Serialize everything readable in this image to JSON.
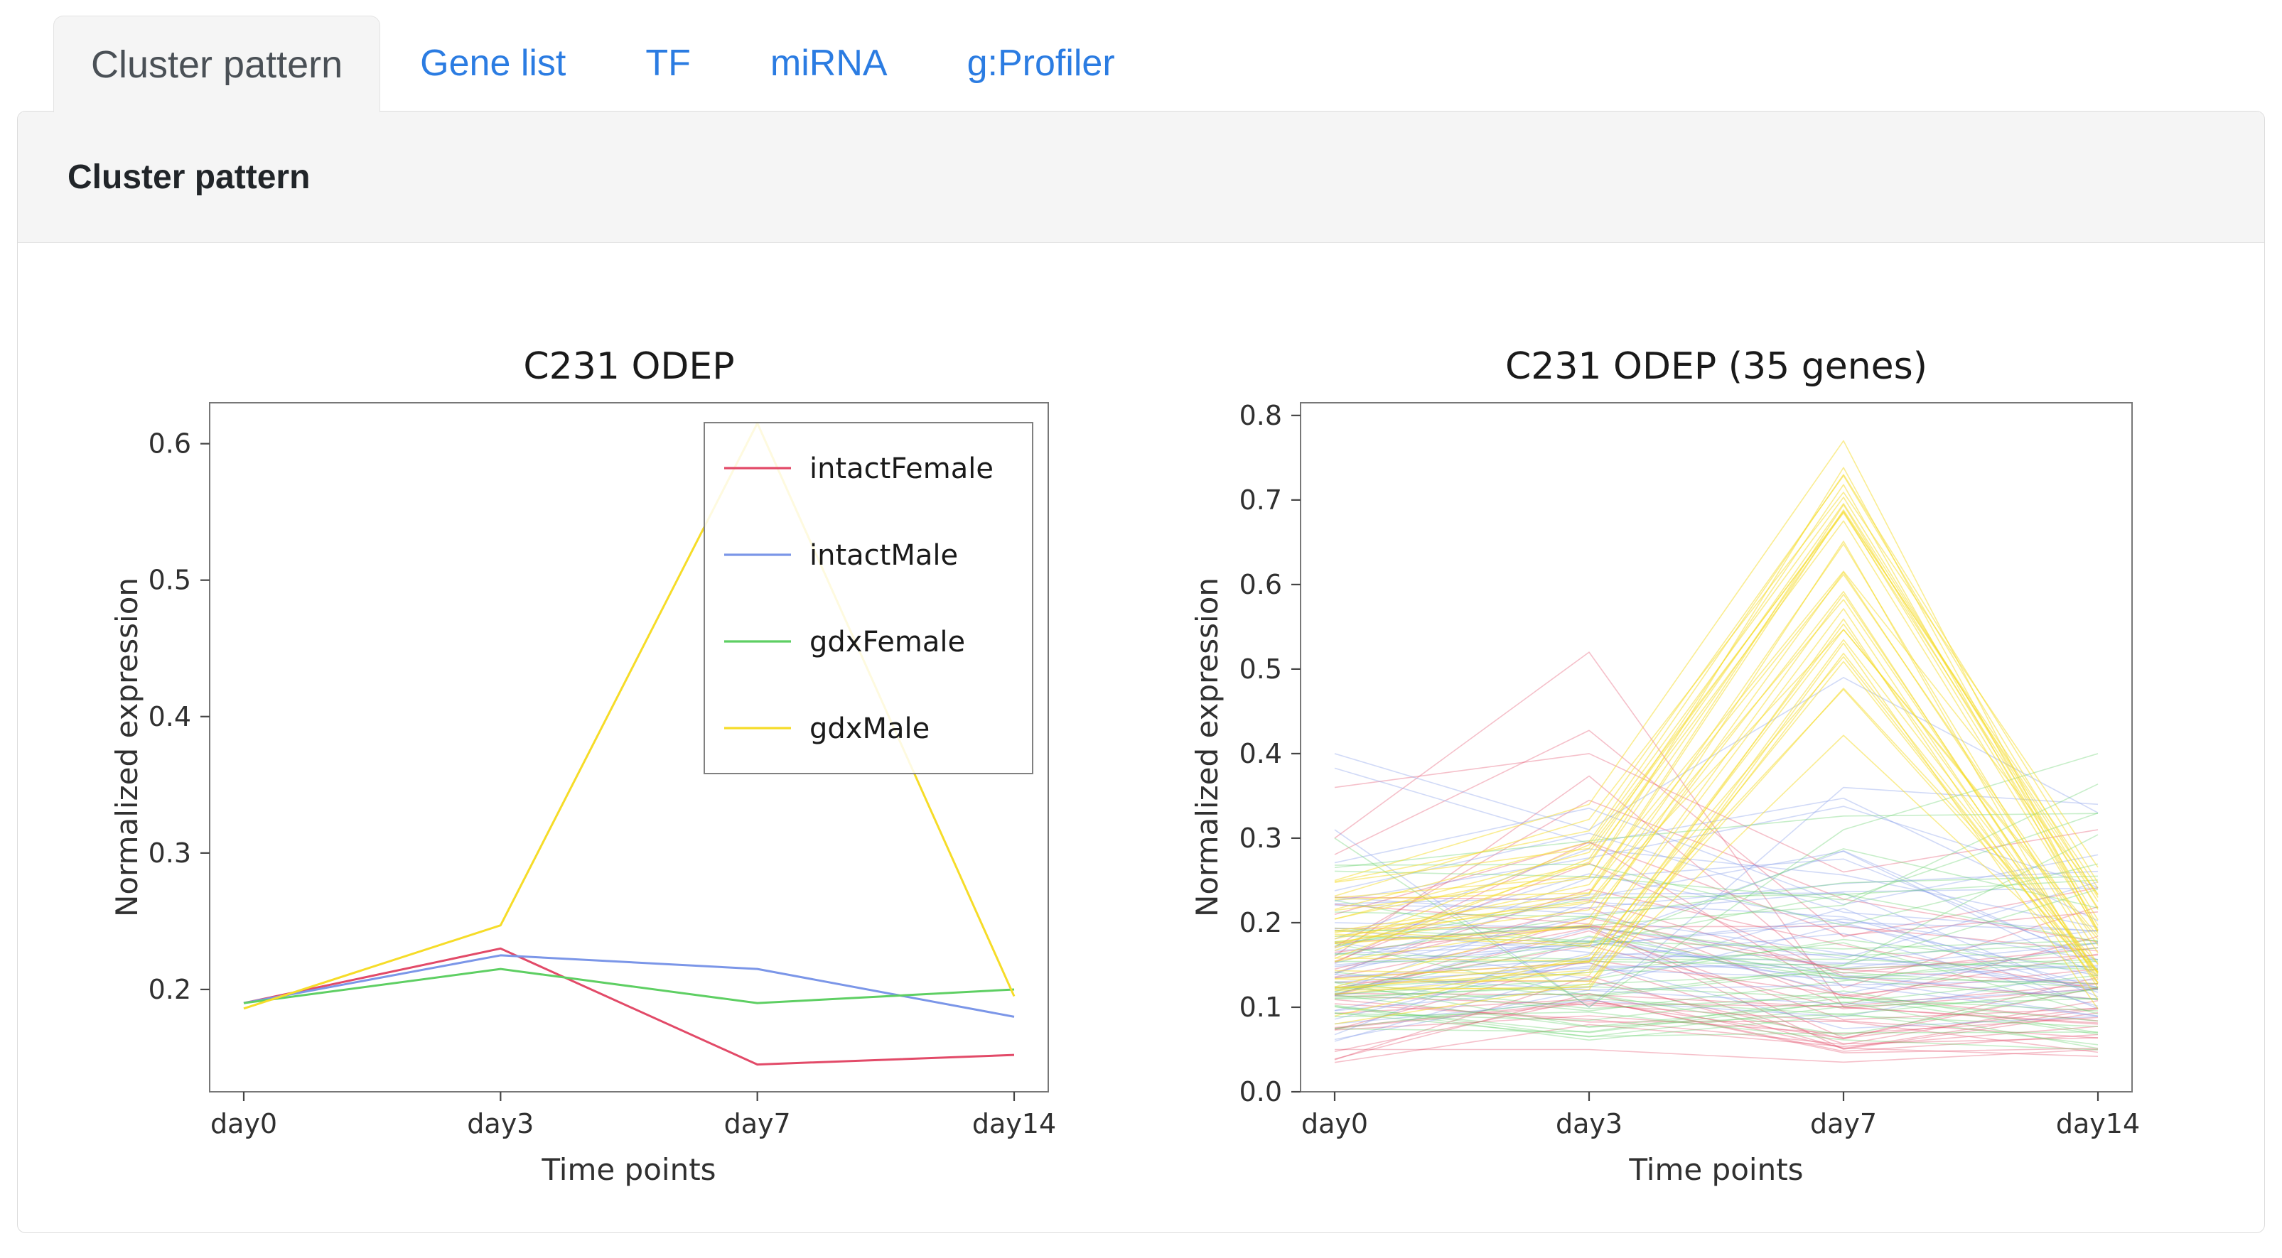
{
  "tabs": {
    "items": [
      {
        "label": "Cluster pattern",
        "active": true
      },
      {
        "label": "Gene list",
        "active": false
      },
      {
        "label": "TF",
        "active": false
      },
      {
        "label": "miRNA",
        "active": false
      },
      {
        "label": "g:Profiler",
        "active": false
      }
    ]
  },
  "panel": {
    "title": "Cluster pattern"
  },
  "colors": {
    "tab_link": "#2b7ce2",
    "active_tab_text": "#4a5056",
    "intactFemale": "#e24a68",
    "intactMale": "#7b96e8",
    "gdxFemale": "#5ecf63",
    "gdxMale": "#f6dc28"
  },
  "chart_data": [
    {
      "type": "line",
      "title": "C231 ODEP",
      "xlabel": "Time points",
      "ylabel": "Normalized expression",
      "categories": [
        "day0",
        "day3",
        "day7",
        "day14"
      ],
      "ylim": [
        0.125,
        0.63
      ],
      "yticks": [
        0.2,
        0.3,
        0.4,
        0.5,
        0.6
      ],
      "grid": false,
      "legend": true,
      "legend_position": "upper right",
      "series": [
        {
          "name": "intactFemale",
          "color": "#e24a68",
          "values": [
            0.19,
            0.23,
            0.145,
            0.152
          ]
        },
        {
          "name": "intactMale",
          "color": "#7b96e8",
          "values": [
            0.19,
            0.225,
            0.215,
            0.18
          ]
        },
        {
          "name": "gdxFemale",
          "color": "#5ecf63",
          "values": [
            0.19,
            0.215,
            0.19,
            0.2
          ]
        },
        {
          "name": "gdxMale",
          "color": "#f6dc28",
          "values": [
            0.186,
            0.247,
            0.615,
            0.195
          ]
        }
      ]
    },
    {
      "type": "line-ensemble",
      "title": "C231 ODEP (35 genes)",
      "xlabel": "Time points",
      "ylabel": "Normalized expression",
      "categories": [
        "day0",
        "day3",
        "day7",
        "day14"
      ],
      "ylim": [
        0.0,
        0.815
      ],
      "yticks": [
        0.0,
        0.1,
        0.2,
        0.3,
        0.4,
        0.5,
        0.6,
        0.7,
        0.8
      ],
      "grid": false,
      "legend": false,
      "genes_per_condition": 35,
      "seed": 42,
      "series": [
        {
          "name": "intactFemale",
          "color": "#e24a68",
          "n_lines": 35,
          "opacity": 0.35,
          "band_by_timepoint": [
            [
              0.03,
              0.37
            ],
            [
              0.05,
              0.45
            ],
            [
              0.03,
              0.26
            ],
            [
              0.04,
              0.31
            ]
          ],
          "skew_by_timepoint": [
            "low",
            "low",
            "low",
            "low"
          ],
          "outlier_traces": [
            [
              0.3,
              0.52,
              0.1,
              0.08
            ],
            [
              0.36,
              0.4,
              0.26,
              0.31
            ],
            [
              0.05,
              0.05,
              0.035,
              0.05
            ]
          ]
        },
        {
          "name": "intactMale",
          "color": "#7b96e8",
          "n_lines": 35,
          "opacity": 0.35,
          "band_by_timepoint": [
            [
              0.05,
              0.4
            ],
            [
              0.09,
              0.4
            ],
            [
              0.07,
              0.44
            ],
            [
              0.06,
              0.35
            ]
          ],
          "skew_by_timepoint": [
            "low",
            "low",
            "low",
            "low"
          ],
          "outlier_traces": [
            [
              0.4,
              0.31,
              0.49,
              0.33
            ],
            [
              0.31,
              0.1,
              0.36,
              0.34
            ]
          ]
        },
        {
          "name": "gdxFemale",
          "color": "#5ecf63",
          "n_lines": 35,
          "opacity": 0.35,
          "band_by_timepoint": [
            [
              0.07,
              0.31
            ],
            [
              0.05,
              0.31
            ],
            [
              0.06,
              0.36
            ],
            [
              0.04,
              0.41
            ]
          ],
          "skew_by_timepoint": [
            "low",
            "low",
            "low",
            "low"
          ],
          "outlier_traces": [
            [
              0.3,
              0.1,
              0.31,
              0.4
            ]
          ]
        },
        {
          "name": "gdxMale",
          "color": "#f6dc28",
          "n_lines": 35,
          "opacity": 0.5,
          "band_by_timepoint": [
            [
              0.07,
              0.26
            ],
            [
              0.1,
              0.34
            ],
            [
              0.38,
              0.77
            ],
            [
              0.07,
              0.28
            ]
          ],
          "skew_by_timepoint": [
            "mid",
            "mid",
            "high",
            "mid"
          ],
          "outlier_traces": [
            [
              0.25,
              0.34,
              0.77,
              0.19
            ]
          ]
        }
      ]
    }
  ]
}
